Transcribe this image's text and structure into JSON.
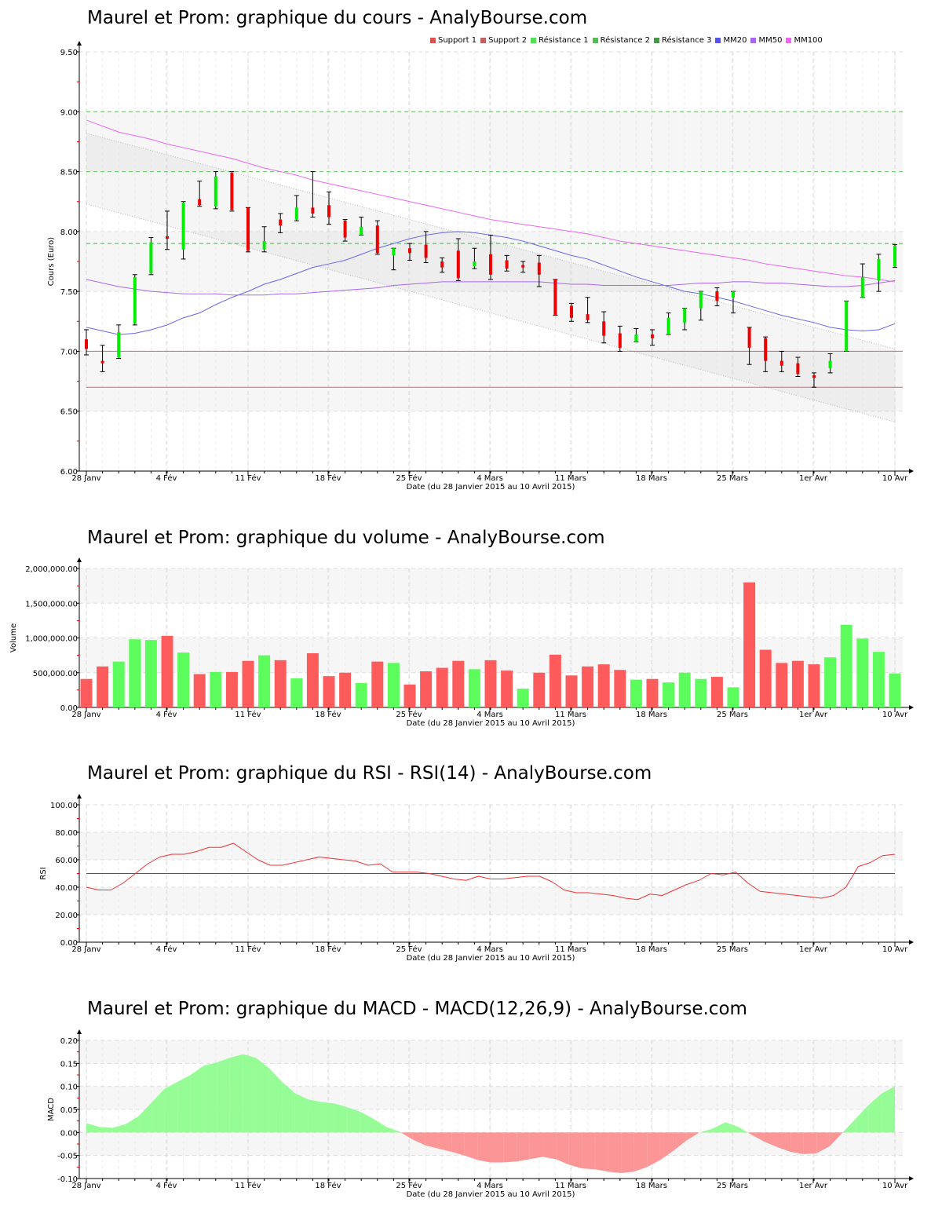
{
  "titles": {
    "price": "Maurel et Prom: graphique du cours - AnalyBourse.com",
    "volume": "Maurel et Prom: graphique du volume - AnalyBourse.com",
    "rsi": "Maurel et Prom: graphique du RSI - RSI(14) - AnalyBourse.com",
    "macd": "Maurel et Prom: graphique du MACD - MACD(12,26,9) - AnalyBourse.com"
  },
  "legend": [
    {
      "label": "Support 1",
      "color": "#d9534f"
    },
    {
      "label": "Support 2",
      "color": "#c06060"
    },
    {
      "label": "Résistance 1",
      "color": "#55dd55"
    },
    {
      "label": "Résistance 2",
      "color": "#55bb55"
    },
    {
      "label": "Résistance 3",
      "color": "#449944"
    },
    {
      "label": "MM20",
      "color": "#5555ee"
    },
    {
      "label": "MM50",
      "color": "#aa66ee"
    },
    {
      "label": "MM100",
      "color": "#ee66ee"
    }
  ],
  "axes": {
    "x_ticks": [
      "28 Janv",
      "4 Fév",
      "11 Fév",
      "18 Fév",
      "25 Fév",
      "4 Mars",
      "11 Mars",
      "18 Mars",
      "25 Mars",
      "1er Avr",
      "10 Avr"
    ],
    "x_label": "Date (du 28 Janvier 2015 au 10 Avril 2015)",
    "price_ylabel": "Cours (Euro)",
    "price_yticks": [
      "9.50",
      "9.00",
      "8.50",
      "8.00",
      "7.50",
      "7.00",
      "6.50",
      "6.00"
    ],
    "volume_ylabel": "Volume",
    "volume_yticks": [
      "2,000,000.00",
      "1,500,000.00",
      "1,000,000.00",
      "500,000.00",
      "0.00"
    ],
    "rsi_ylabel": "RSI",
    "rsi_yticks": [
      "100.00",
      "80.00",
      "60.00",
      "40.00",
      "20.00",
      "0.00"
    ],
    "macd_ylabel": "MACD",
    "macd_yticks": [
      "0.20",
      "0.15",
      "0.10",
      "0.05",
      "0.00",
      "-0.05",
      "-0.10"
    ]
  },
  "chart_data": [
    {
      "type": "candlestick",
      "title": "Maurel et Prom: graphique du cours - AnalyBourse.com",
      "xlabel": "Date (du 28 Janvier 2015 au 10 Avril 2015)",
      "ylabel": "Cours (Euro)",
      "ylim": [
        6.0,
        9.5
      ],
      "grid": true,
      "legend_position": "top-right",
      "levels": {
        "support1": 6.7,
        "support2": 7.0,
        "resistance1": 7.9,
        "resistance2": 8.5,
        "resistance3": 9.0
      },
      "candles": [
        {
          "o": 7.1,
          "h": 7.18,
          "l": 6.97,
          "c": 7.02
        },
        {
          "o": 6.92,
          "h": 7.05,
          "l": 6.83,
          "c": 6.9
        },
        {
          "o": 6.95,
          "h": 7.22,
          "l": 6.94,
          "c": 7.16
        },
        {
          "o": 7.23,
          "h": 7.64,
          "l": 7.22,
          "c": 7.62
        },
        {
          "o": 7.65,
          "h": 7.95,
          "l": 7.64,
          "c": 7.91
        },
        {
          "o": 7.96,
          "h": 8.17,
          "l": 7.85,
          "c": 7.94
        },
        {
          "o": 7.85,
          "h": 8.25,
          "l": 7.77,
          "c": 8.24
        },
        {
          "o": 8.27,
          "h": 8.42,
          "l": 8.21,
          "c": 8.22
        },
        {
          "o": 8.21,
          "h": 8.5,
          "l": 8.19,
          "c": 8.46
        },
        {
          "o": 8.49,
          "h": 8.5,
          "l": 8.17,
          "c": 8.18
        },
        {
          "o": 8.2,
          "h": 8.2,
          "l": 7.83,
          "c": 7.84
        },
        {
          "o": 7.85,
          "h": 8.04,
          "l": 7.83,
          "c": 7.92
        },
        {
          "o": 8.1,
          "h": 8.15,
          "l": 7.99,
          "c": 8.05
        },
        {
          "o": 8.1,
          "h": 8.3,
          "l": 8.09,
          "c": 8.2
        },
        {
          "o": 8.2,
          "h": 8.5,
          "l": 8.12,
          "c": 8.15
        },
        {
          "o": 8.22,
          "h": 8.33,
          "l": 8.06,
          "c": 8.12
        },
        {
          "o": 8.09,
          "h": 8.1,
          "l": 7.92,
          "c": 7.95
        },
        {
          "o": 7.97,
          "h": 8.12,
          "l": 7.97,
          "c": 8.04
        },
        {
          "o": 8.05,
          "h": 8.09,
          "l": 7.81,
          "c": 7.82
        },
        {
          "o": 7.8,
          "h": 7.86,
          "l": 7.68,
          "c": 7.86
        },
        {
          "o": 7.86,
          "h": 7.9,
          "l": 7.76,
          "c": 7.82
        },
        {
          "o": 7.89,
          "h": 8.0,
          "l": 7.74,
          "c": 7.78
        },
        {
          "o": 7.75,
          "h": 7.78,
          "l": 7.66,
          "c": 7.7
        },
        {
          "o": 7.84,
          "h": 7.94,
          "l": 7.59,
          "c": 7.61
        },
        {
          "o": 7.71,
          "h": 7.86,
          "l": 7.69,
          "c": 7.75
        },
        {
          "o": 7.81,
          "h": 7.97,
          "l": 7.6,
          "c": 7.64
        },
        {
          "o": 7.76,
          "h": 7.8,
          "l": 7.67,
          "c": 7.69
        },
        {
          "o": 7.72,
          "h": 7.75,
          "l": 7.66,
          "c": 7.7
        },
        {
          "o": 7.74,
          "h": 7.8,
          "l": 7.54,
          "c": 7.64
        },
        {
          "o": 7.6,
          "h": 7.6,
          "l": 7.3,
          "c": 7.3
        },
        {
          "o": 7.38,
          "h": 7.4,
          "l": 7.25,
          "c": 7.28
        },
        {
          "o": 7.31,
          "h": 7.45,
          "l": 7.24,
          "c": 7.26
        },
        {
          "o": 7.25,
          "h": 7.33,
          "l": 7.07,
          "c": 7.13
        },
        {
          "o": 7.15,
          "h": 7.21,
          "l": 7.0,
          "c": 7.03
        },
        {
          "o": 7.08,
          "h": 7.19,
          "l": 7.08,
          "c": 7.14
        },
        {
          "o": 7.14,
          "h": 7.18,
          "l": 7.05,
          "c": 7.11
        },
        {
          "o": 7.14,
          "h": 7.32,
          "l": 7.14,
          "c": 7.28
        },
        {
          "o": 7.24,
          "h": 7.36,
          "l": 7.18,
          "c": 7.36
        },
        {
          "o": 7.36,
          "h": 7.5,
          "l": 7.26,
          "c": 7.5
        },
        {
          "o": 7.5,
          "h": 7.53,
          "l": 7.38,
          "c": 7.42
        },
        {
          "o": 7.45,
          "h": 7.5,
          "l": 7.32,
          "c": 7.5
        },
        {
          "o": 7.2,
          "h": 7.2,
          "l": 6.89,
          "c": 7.03
        },
        {
          "o": 7.11,
          "h": 7.12,
          "l": 6.83,
          "c": 6.92
        },
        {
          "o": 6.92,
          "h": 7.0,
          "l": 6.83,
          "c": 6.88
        },
        {
          "o": 6.9,
          "h": 6.95,
          "l": 6.79,
          "c": 6.81
        },
        {
          "o": 6.8,
          "h": 6.82,
          "l": 6.7,
          "c": 6.78
        },
        {
          "o": 6.86,
          "h": 6.98,
          "l": 6.82,
          "c": 6.92
        },
        {
          "o": 7.0,
          "h": 7.42,
          "l": 7.0,
          "c": 7.42
        },
        {
          "o": 7.45,
          "h": 7.73,
          "l": 7.45,
          "c": 7.62
        },
        {
          "o": 7.59,
          "h": 7.81,
          "l": 7.5,
          "c": 7.77
        },
        {
          "o": 7.71,
          "h": 7.89,
          "l": 7.7,
          "c": 7.88
        }
      ],
      "series": [
        {
          "name": "MM20",
          "values": [
            7.2,
            7.17,
            7.14,
            7.15,
            7.18,
            7.22,
            7.28,
            7.32,
            7.39,
            7.45,
            7.5,
            7.56,
            7.6,
            7.65,
            7.7,
            7.73,
            7.76,
            7.81,
            7.86,
            7.9,
            7.94,
            7.97,
            7.99,
            8.0,
            7.99,
            7.97,
            7.95,
            7.92,
            7.88,
            7.84,
            7.8,
            7.77,
            7.72,
            7.67,
            7.62,
            7.58,
            7.54,
            7.5,
            7.48,
            7.45,
            7.42,
            7.38,
            7.34,
            7.3,
            7.27,
            7.24,
            7.2,
            7.18,
            7.17,
            7.18,
            7.23
          ]
        },
        {
          "name": "MM50",
          "values": [
            7.6,
            7.57,
            7.54,
            7.52,
            7.5,
            7.49,
            7.48,
            7.48,
            7.48,
            7.47,
            7.47,
            7.47,
            7.48,
            7.48,
            7.49,
            7.5,
            7.51,
            7.52,
            7.53,
            7.55,
            7.56,
            7.57,
            7.58,
            7.58,
            7.58,
            7.58,
            7.58,
            7.58,
            7.58,
            7.57,
            7.56,
            7.56,
            7.55,
            7.55,
            7.55,
            7.55,
            7.55,
            7.56,
            7.57,
            7.57,
            7.58,
            7.58,
            7.57,
            7.57,
            7.56,
            7.55,
            7.54,
            7.54,
            7.55,
            7.57,
            7.59
          ]
        },
        {
          "name": "MM100",
          "values": [
            8.93,
            8.88,
            8.83,
            8.8,
            8.77,
            8.73,
            8.7,
            8.67,
            8.64,
            8.61,
            8.57,
            8.53,
            8.5,
            8.47,
            8.43,
            8.4,
            8.37,
            8.34,
            8.31,
            8.28,
            8.25,
            8.22,
            8.19,
            8.16,
            8.13,
            8.1,
            8.08,
            8.06,
            8.04,
            8.02,
            8.0,
            7.98,
            7.95,
            7.92,
            7.9,
            7.88,
            7.86,
            7.84,
            7.82,
            7.8,
            7.78,
            7.76,
            7.73,
            7.71,
            7.69,
            7.67,
            7.65,
            7.63,
            7.62,
            7.6,
            7.58
          ]
        }
      ],
      "trend_channel": {
        "upper_start": 8.82,
        "upper_end": 7.02,
        "lower_start": 8.23,
        "lower_end": 6.41
      }
    },
    {
      "type": "bar",
      "title": "Maurel et Prom: graphique du volume - AnalyBourse.com",
      "xlabel": "Date (du 28 Janvier 2015 au 10 Avril 2015)",
      "ylabel": "Volume",
      "ylim": [
        0,
        2000000
      ],
      "grid": true,
      "values": [
        410000,
        590000,
        660000,
        980000,
        970000,
        1030000,
        790000,
        480000,
        510000,
        510000,
        670000,
        750000,
        680000,
        420000,
        780000,
        450000,
        500000,
        350000,
        660000,
        640000,
        330000,
        520000,
        570000,
        670000,
        550000,
        680000,
        530000,
        270000,
        500000,
        760000,
        460000,
        590000,
        620000,
        540000,
        400000,
        410000,
        360000,
        500000,
        410000,
        440000,
        290000,
        1800000,
        830000,
        640000,
        670000,
        620000,
        720000,
        1190000,
        990000,
        800000,
        490000
      ],
      "colors": [
        "red",
        "red",
        "green",
        "green",
        "green",
        "red",
        "green",
        "red",
        "green",
        "red",
        "red",
        "green",
        "red",
        "green",
        "red",
        "red",
        "red",
        "green",
        "red",
        "green",
        "red",
        "red",
        "red",
        "red",
        "green",
        "red",
        "red",
        "green",
        "red",
        "red",
        "red",
        "red",
        "red",
        "red",
        "green",
        "red",
        "green",
        "green",
        "green",
        "red",
        "green",
        "red",
        "red",
        "red",
        "red",
        "red",
        "green",
        "green",
        "green",
        "green",
        "green"
      ]
    },
    {
      "type": "line",
      "title": "Maurel et Prom: graphique du RSI - RSI(14) - AnalyBourse.com",
      "xlabel": "Date (du 28 Janvier 2015 au 10 Avril 2015)",
      "ylabel": "RSI",
      "ylim": [
        0,
        100
      ],
      "grid": true,
      "reference_line": 50,
      "series": [
        {
          "name": "RSI(14)",
          "values": [
            40,
            38,
            38,
            43,
            50,
            57,
            62,
            64,
            64,
            66,
            69,
            69,
            72,
            66,
            60,
            56,
            56,
            58,
            60,
            62,
            61,
            60,
            59,
            56,
            57,
            51,
            51,
            51,
            50,
            48,
            46,
            45,
            48,
            46,
            46,
            47,
            48,
            48,
            44,
            38,
            36,
            36,
            35,
            34,
            32,
            31,
            35,
            34,
            38,
            42,
            45,
            50,
            49,
            51,
            43,
            37,
            36,
            35,
            34,
            33,
            32,
            34,
            40,
            55,
            58,
            63,
            64
          ]
        }
      ],
      "x_points_note": "RSI sampled across 28 Janv to 10 Avr"
    },
    {
      "type": "area",
      "title": "Maurel et Prom: graphique du MACD - MACD(12,26,9) - AnalyBourse.com",
      "xlabel": "Date (du 28 Janvier 2015 au 10 Avril 2015)",
      "ylabel": "MACD",
      "ylim": [
        -0.1,
        0.2
      ],
      "grid": true,
      "series": [
        {
          "name": "MACD(12,26,9)",
          "values": [
            0.02,
            0.012,
            0.01,
            0.018,
            0.035,
            0.065,
            0.095,
            0.11,
            0.125,
            0.145,
            0.152,
            0.162,
            0.17,
            0.162,
            0.14,
            0.11,
            0.085,
            0.072,
            0.066,
            0.063,
            0.055,
            0.045,
            0.03,
            0.012,
            0.002,
            -0.015,
            -0.028,
            -0.035,
            -0.042,
            -0.05,
            -0.06,
            -0.065,
            -0.065,
            -0.063,
            -0.058,
            -0.053,
            -0.058,
            -0.07,
            -0.078,
            -0.08,
            -0.085,
            -0.088,
            -0.085,
            -0.075,
            -0.06,
            -0.04,
            -0.018,
            0.0,
            0.008,
            0.022,
            0.012,
            -0.005,
            -0.02,
            -0.032,
            -0.042,
            -0.047,
            -0.045,
            -0.03,
            0.0,
            0.03,
            0.06,
            0.085,
            0.1
          ]
        }
      ]
    }
  ]
}
